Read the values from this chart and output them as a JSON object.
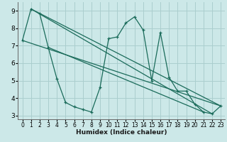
{
  "xlabel": "Humidex (Indice chaleur)",
  "ylabel": "",
  "background_color": "#cce8e8",
  "grid_color": "#aacece",
  "line_color": "#1a6b5a",
  "xlim": [
    -0.5,
    23.5
  ],
  "ylim": [
    2.8,
    9.5
  ],
  "yticks": [
    3,
    4,
    5,
    6,
    7,
    8,
    9
  ],
  "xticks": [
    0,
    1,
    2,
    3,
    4,
    5,
    6,
    7,
    8,
    9,
    10,
    11,
    12,
    13,
    14,
    15,
    16,
    17,
    18,
    19,
    20,
    21,
    22,
    23
  ],
  "series_main": {
    "x": [
      0,
      1,
      2,
      3,
      4,
      5,
      6,
      7,
      8,
      9,
      10,
      11,
      12,
      13,
      14,
      15,
      16,
      17,
      18,
      19,
      20,
      21,
      22,
      23
    ],
    "y": [
      7.3,
      9.1,
      8.85,
      6.9,
      5.1,
      3.75,
      3.5,
      3.35,
      3.2,
      4.6,
      7.4,
      7.5,
      8.3,
      8.65,
      7.9,
      5.0,
      7.75,
      5.2,
      4.4,
      4.4,
      3.65,
      3.2,
      3.1,
      3.55
    ]
  },
  "series_lines": [
    {
      "x": [
        0,
        23
      ],
      "y": [
        7.3,
        3.55
      ]
    },
    {
      "x": [
        1,
        22
      ],
      "y": [
        9.1,
        3.1
      ]
    },
    {
      "x": [
        2,
        23
      ],
      "y": [
        8.85,
        3.55
      ]
    },
    {
      "x": [
        3,
        21
      ],
      "y": [
        6.9,
        3.2
      ]
    }
  ]
}
